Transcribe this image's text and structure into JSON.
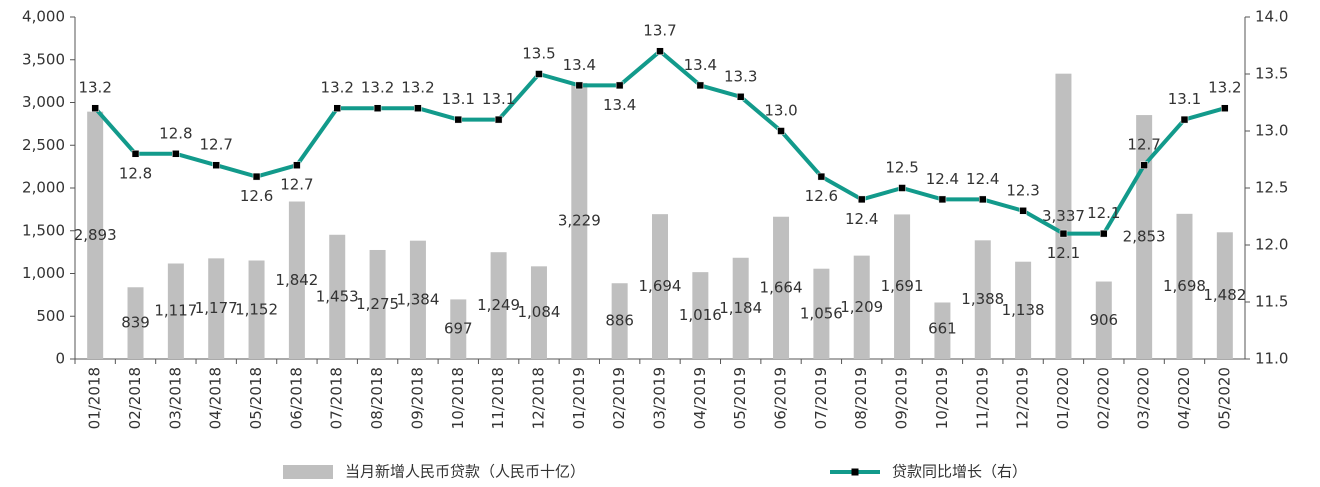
{
  "chart_data": {
    "type": "bar_line",
    "categories": [
      "01/2018",
      "02/2018",
      "03/2018",
      "04/2018",
      "05/2018",
      "06/2018",
      "07/2018",
      "08/2018",
      "09/2018",
      "10/2018",
      "11/2018",
      "12/2018",
      "01/2019",
      "02/2019",
      "03/2019",
      "04/2019",
      "05/2019",
      "06/2019",
      "07/2019",
      "08/2019",
      "09/2019",
      "10/2019",
      "11/2019",
      "12/2019",
      "01/2020",
      "02/2020",
      "03/2020",
      "04/2020",
      "05/2020"
    ],
    "series": [
      {
        "name": "当月新增人民币贷款（人民币十亿）",
        "type": "bar",
        "color": "#bfbfbf",
        "values": [
          2893,
          839,
          1117,
          1177,
          1152,
          1842,
          1453,
          1275,
          1384,
          697,
          1249,
          1084,
          3229,
          886,
          1694,
          1016,
          1184,
          1664,
          1056,
          1209,
          1691,
          661,
          1388,
          1138,
          3337,
          906,
          2853,
          1698,
          1482
        ],
        "value_labels": [
          "2,893",
          "839",
          "1,117",
          "1,177",
          "1,152",
          "1,842",
          "1,453",
          "1,275",
          "1,384",
          "697",
          "1,249",
          "1,084",
          "3,229",
          "886",
          "1,694",
          "1,016",
          "1,184",
          "1,664",
          "1,056",
          "1,209",
          "1,691",
          "661",
          "1,388",
          "1,138",
          "3,337",
          "906",
          "2,853",
          "1,698",
          "1,482"
        ]
      },
      {
        "name": "贷款同比增长（右）",
        "type": "line",
        "axis": "y2",
        "color": "#129a8b",
        "values": [
          13.2,
          12.8,
          12.8,
          12.7,
          12.6,
          12.7,
          13.2,
          13.2,
          13.2,
          13.1,
          13.1,
          13.5,
          13.4,
          13.4,
          13.7,
          13.4,
          13.3,
          13.0,
          12.6,
          12.4,
          12.5,
          12.4,
          12.4,
          12.3,
          12.1,
          12.1,
          12.7,
          13.1,
          13.2
        ],
        "value_labels": [
          "13.2",
          "12.8",
          "12.8",
          "12.7",
          "12.6",
          "12.7",
          "13.2",
          "13.2",
          "13.2",
          "13.1",
          "13.1",
          "13.5",
          "13.4",
          "13.4",
          "13.7",
          "13.4",
          "13.3",
          "13.0",
          "12.6",
          "12.4",
          "12.5",
          "12.4",
          "12.4",
          "12.3",
          "12.1",
          "12.1",
          "12.7",
          "13.1",
          "13.2"
        ]
      }
    ],
    "ylim": [
      0,
      4000
    ],
    "yticks": [
      0,
      {
        "value": 500,
        "label": "500"
      },
      {
        "value": 1000,
        "label": "1,000"
      },
      {
        "value": 1500,
        "label": "1,500"
      },
      {
        "value": 2000,
        "label": "2,000"
      },
      {
        "value": 2500,
        "label": "2,500"
      },
      {
        "value": 3000,
        "label": "3,000"
      },
      {
        "value": 3500,
        "label": "3,500"
      },
      {
        "value": 4000,
        "label": "4,000"
      }
    ],
    "y2lim": [
      11,
      14
    ],
    "y2ticks": [
      {
        "value": 11,
        "label": "11.0"
      },
      {
        "value": 11.5,
        "label": "11.5"
      },
      {
        "value": 12,
        "label": "12.0"
      },
      {
        "value": 12.5,
        "label": "12.5"
      },
      {
        "value": 13,
        "label": "13.0"
      },
      {
        "value": 13.5,
        "label": "13.5"
      },
      {
        "value": 14,
        "label": "14.0"
      }
    ],
    "grid": false,
    "legend": "bottom"
  }
}
